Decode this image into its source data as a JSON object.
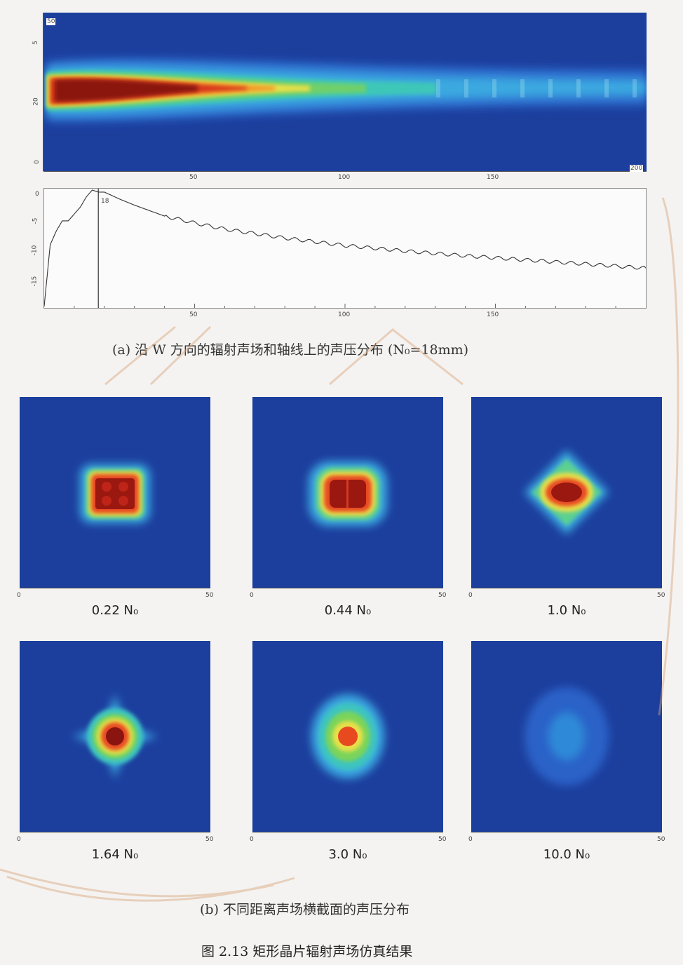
{
  "longitudinal": {
    "x_ticks": [
      "50",
      "100",
      "150"
    ],
    "x_max_label": "200",
    "y_top_label": "50",
    "y_ticks": [
      "5",
      "20",
      "0"
    ]
  },
  "axial_plot": {
    "marker_label": "18",
    "y_ticks": [
      "0",
      "-5",
      "-10",
      "-15"
    ],
    "x_ticks": [
      "50",
      "100",
      "150"
    ]
  },
  "chart_data": {
    "type": "line",
    "x": [
      0,
      2,
      4,
      6,
      8,
      10,
      12,
      14,
      16,
      18,
      20,
      25,
      30,
      40,
      50,
      60,
      80,
      100,
      120,
      140,
      160,
      180,
      200
    ],
    "y": [
      -17,
      -8,
      -6,
      -4.5,
      -4.5,
      -3.5,
      -2.5,
      -1,
      0,
      -0.3,
      -0.3,
      -1.3,
      -2.2,
      -3.8,
      -4.8,
      -5.7,
      -7,
      -8.1,
      -8.9,
      -9.6,
      -10.2,
      -10.8,
      -11.4
    ],
    "xlim": [
      0,
      200
    ],
    "ylim": [
      -17,
      0
    ],
    "marker_x": 18
  },
  "caption_a": {
    "prefix": "(a)",
    "text": "沿 W 方向的辐射声场和轴线上的声压分布",
    "suffix": "(N₀=18mm)"
  },
  "cross_sections": [
    {
      "label": "0.22 N₀",
      "x0": "0",
      "x1": "50"
    },
    {
      "label": "0.44 N₀",
      "x0": "0",
      "x1": "50"
    },
    {
      "label": "1.0 N₀",
      "x0": "0",
      "x1": "50"
    },
    {
      "label": "1.64 N₀",
      "x0": "0",
      "x1": "50"
    },
    {
      "label": "3.0 N₀",
      "x0": "0",
      "x1": "50"
    },
    {
      "label": "10.0 N₀",
      "x0": "0",
      "x1": "50"
    }
  ],
  "caption_b": {
    "text": "(b) 不同距离声场横截面的声压分布"
  },
  "figure_caption": {
    "text": "图 2.13 矩形晶片辐射声场仿真结果"
  }
}
